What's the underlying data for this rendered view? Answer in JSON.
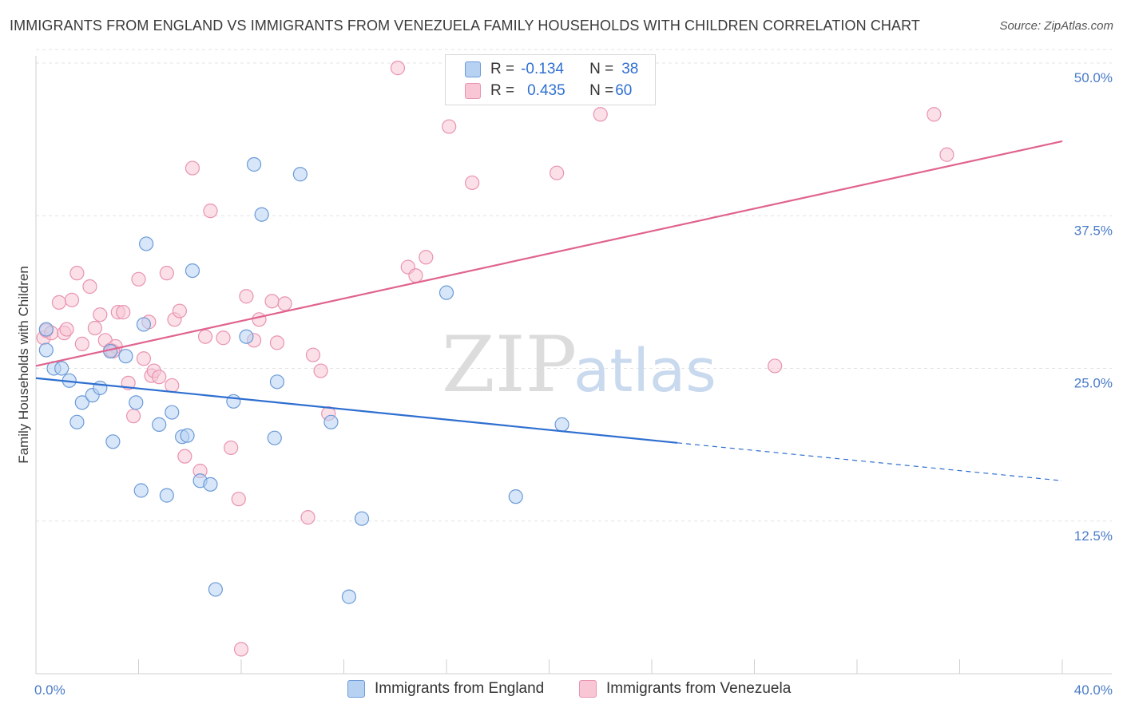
{
  "title": "IMMIGRANTS FROM ENGLAND VS IMMIGRANTS FROM VENEZUELA FAMILY HOUSEHOLDS WITH CHILDREN CORRELATION CHART",
  "source": "Source: ZipAtlas.com",
  "watermark": {
    "zip": "ZIP",
    "atlas": "atlas"
  },
  "legend": {
    "england": {
      "r_label": "R =",
      "r_value": "-0.134",
      "n_label": "N =",
      "n_value": "38"
    },
    "venezuela": {
      "r_label": "R =",
      "r_value": "0.435",
      "n_label": "N =",
      "n_value": "60"
    }
  },
  "colors": {
    "england_fill": "#b7d1f3",
    "england_stroke": "#6c9bd8",
    "england_line": "#2f6fd0",
    "venezuela_fill": "#f8c6d5",
    "venezuela_stroke": "#e993b0",
    "venezuela_line": "#e0638f",
    "tick_text": "#4a7cc7",
    "grid": "#e3e3e3"
  },
  "chart_data": {
    "type": "scatter",
    "title": "IMMIGRANTS FROM ENGLAND VS IMMIGRANTS FROM VENEZUELA FAMILY HOUSEHOLDS WITH CHILDREN CORRELATION CHART",
    "xlabel": "",
    "ylabel": "Family Households with Children",
    "xlim": [
      0,
      40
    ],
    "ylim": [
      0,
      52
    ],
    "x_tick_labels": [
      "0.0%",
      "40.0%"
    ],
    "y_ticks": [
      12.5,
      25.0,
      37.5,
      50.0
    ],
    "y_tick_labels": [
      "12.5%",
      "25.0%",
      "37.5%",
      "50.0%"
    ],
    "grid": "horizontal dashed",
    "legend_position": "top-center",
    "series": [
      {
        "name": "Immigrants from England",
        "r": -0.134,
        "n": 38,
        "trend": {
          "x_start": 0.0,
          "y_start": 24.2,
          "x_end": 25.0,
          "y_end": 18.9,
          "dashed_to_x": 40.0,
          "dashed_end_y": 15.8
        },
        "points": [
          [
            0.4,
            28.2
          ],
          [
            0.4,
            26.5
          ],
          [
            0.7,
            25.0
          ],
          [
            1.0,
            25.0
          ],
          [
            1.3,
            24.0
          ],
          [
            1.8,
            22.2
          ],
          [
            2.2,
            22.8
          ],
          [
            2.5,
            23.4
          ],
          [
            1.6,
            20.6
          ],
          [
            3.0,
            19.0
          ],
          [
            3.5,
            26.0
          ],
          [
            3.9,
            22.2
          ],
          [
            4.2,
            28.6
          ],
          [
            4.3,
            35.2
          ],
          [
            4.1,
            15.0
          ],
          [
            4.8,
            20.4
          ],
          [
            5.1,
            14.6
          ],
          [
            5.3,
            21.4
          ],
          [
            5.7,
            19.4
          ],
          [
            5.9,
            19.5
          ],
          [
            6.1,
            33.0
          ],
          [
            6.4,
            15.8
          ],
          [
            6.8,
            15.5
          ],
          [
            7.0,
            6.9
          ],
          [
            7.7,
            22.3
          ],
          [
            8.2,
            27.6
          ],
          [
            8.5,
            41.7
          ],
          [
            8.8,
            37.6
          ],
          [
            9.3,
            19.3
          ],
          [
            9.4,
            23.9
          ],
          [
            10.3,
            40.9
          ],
          [
            11.5,
            20.6
          ],
          [
            12.2,
            6.3
          ],
          [
            12.7,
            12.7
          ],
          [
            16.0,
            31.2
          ],
          [
            18.7,
            14.5
          ],
          [
            20.5,
            20.4
          ],
          [
            2.9,
            26.4
          ]
        ]
      },
      {
        "name": "Immigrants from Venezuela",
        "r": 0.435,
        "n": 60,
        "trend": {
          "x_start": 0.0,
          "y_start": 25.2,
          "x_end": 40.0,
          "y_end": 43.6
        },
        "points": [
          [
            0.3,
            27.5
          ],
          [
            0.4,
            28.1
          ],
          [
            0.6,
            27.9
          ],
          [
            0.9,
            30.4
          ],
          [
            1.1,
            27.9
          ],
          [
            1.2,
            28.2
          ],
          [
            1.4,
            30.6
          ],
          [
            1.6,
            32.8
          ],
          [
            1.8,
            27.0
          ],
          [
            2.1,
            31.7
          ],
          [
            2.3,
            28.3
          ],
          [
            2.5,
            29.4
          ],
          [
            2.7,
            27.3
          ],
          [
            2.9,
            26.5
          ],
          [
            3.1,
            26.8
          ],
          [
            3.2,
            29.6
          ],
          [
            3.4,
            29.6
          ],
          [
            3.6,
            23.8
          ],
          [
            3.8,
            21.1
          ],
          [
            4.0,
            32.3
          ],
          [
            4.2,
            25.8
          ],
          [
            4.4,
            28.8
          ],
          [
            4.5,
            24.4
          ],
          [
            4.6,
            24.8
          ],
          [
            4.8,
            24.3
          ],
          [
            5.1,
            32.8
          ],
          [
            5.3,
            23.6
          ],
          [
            5.4,
            29.0
          ],
          [
            5.6,
            29.7
          ],
          [
            5.8,
            17.8
          ],
          [
            6.1,
            41.4
          ],
          [
            6.4,
            16.6
          ],
          [
            6.6,
            27.6
          ],
          [
            6.8,
            37.9
          ],
          [
            7.3,
            27.5
          ],
          [
            7.6,
            18.5
          ],
          [
            7.9,
            14.3
          ],
          [
            8.2,
            30.9
          ],
          [
            8.5,
            27.3
          ],
          [
            8.7,
            29.0
          ],
          [
            9.2,
            30.5
          ],
          [
            9.4,
            27.1
          ],
          [
            9.7,
            30.3
          ],
          [
            8.0,
            2.0
          ],
          [
            10.6,
            12.8
          ],
          [
            10.8,
            26.1
          ],
          [
            11.1,
            24.8
          ],
          [
            11.4,
            21.3
          ],
          [
            14.1,
            49.6
          ],
          [
            14.5,
            33.3
          ],
          [
            14.8,
            32.6
          ],
          [
            15.2,
            34.1
          ],
          [
            16.1,
            44.8
          ],
          [
            17.0,
            40.2
          ],
          [
            20.3,
            41.0
          ],
          [
            22.0,
            45.8
          ],
          [
            28.8,
            25.2
          ],
          [
            35.0,
            45.8
          ],
          [
            35.5,
            42.5
          ],
          [
            3.0,
            26.4
          ]
        ]
      }
    ]
  },
  "bottom_legend": {
    "england": "Immigrants from England",
    "venezuela": "Immigrants from Venezuela"
  }
}
